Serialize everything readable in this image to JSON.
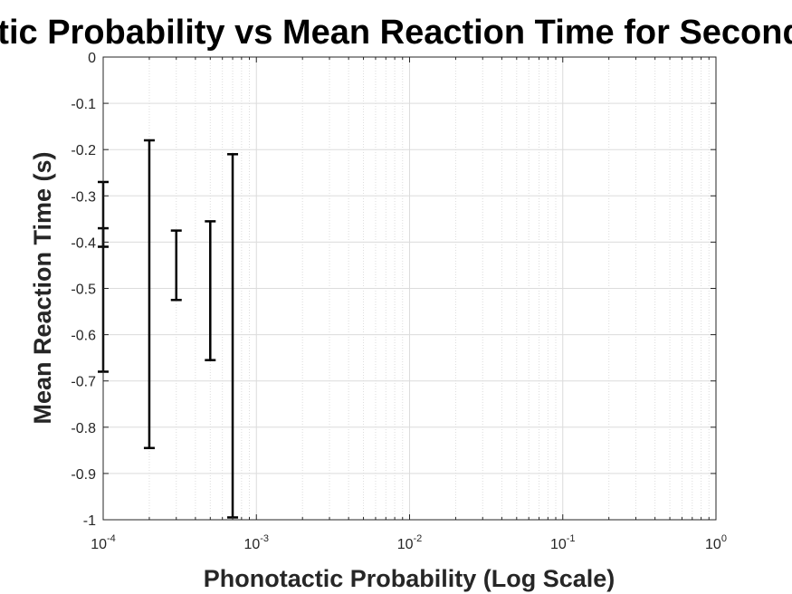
{
  "chart_data": {
    "type": "errorbar",
    "title": "Phonotactic Probability vs Mean Reaction Time for Second Transition",
    "xlabel": "Phonotactic Probability (Log Scale)",
    "ylabel": "Mean Reaction Time (s)",
    "xscale": "log",
    "xlim": [
      0.0001,
      1
    ],
    "ylim": [
      -1,
      0
    ],
    "grid": true,
    "x_tick_labels": [
      {
        "base": "10",
        "exp": "-4"
      },
      {
        "base": "10",
        "exp": "-3"
      },
      {
        "base": "10",
        "exp": "-2"
      },
      {
        "base": "10",
        "exp": "-1"
      },
      {
        "base": "10",
        "exp": "0"
      }
    ],
    "y_ticks": [
      0,
      -0.1,
      -0.2,
      -0.3,
      -0.4,
      -0.5,
      -0.6,
      -0.7,
      -0.8,
      -0.9,
      -1
    ],
    "y_tick_labels": [
      "0",
      "-0.1",
      "-0.2",
      "-0.3",
      "-0.4",
      "-0.5",
      "-0.6",
      "-0.7",
      "-0.8",
      "-0.9",
      "-1"
    ],
    "series": [
      {
        "points": [
          {
            "x": 0.0001,
            "lower": -0.41,
            "upper": -0.27
          },
          {
            "x": 0.0001,
            "lower": -0.68,
            "upper": -0.37
          },
          {
            "x": 0.0002,
            "lower": -0.845,
            "upper": -0.18
          },
          {
            "x": 0.0003,
            "lower": -0.525,
            "upper": -0.375
          },
          {
            "x": 0.0005,
            "lower": -0.655,
            "upper": -0.355
          },
          {
            "x": 0.0007,
            "lower": -0.995,
            "upper": -0.21
          }
        ]
      }
    ],
    "colors": {
      "bars": "#000000",
      "grid": "#dcdcdc",
      "axis": "#262626"
    }
  }
}
